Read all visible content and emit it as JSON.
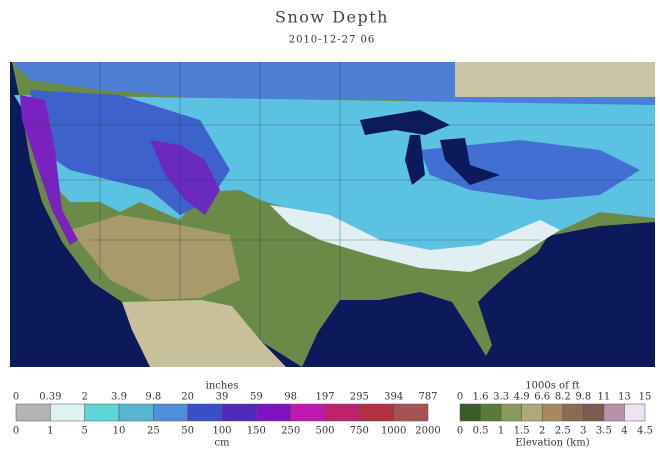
{
  "title": "Snow Depth",
  "subtitle": "2010-12-27 06",
  "snow_legend": {
    "unit_top": "inches",
    "labels_top": [
      0,
      0.39,
      2,
      3.9,
      9.8,
      20,
      39,
      59,
      98,
      197,
      295,
      394,
      787
    ],
    "labels_bottom": [
      0,
      1,
      5,
      10,
      25,
      50,
      100,
      150,
      250,
      500,
      750,
      1000,
      2000
    ],
    "unit_bottom": "cm",
    "colors": [
      "#b4b4b4",
      "#dff2f2",
      "#5ed6d6",
      "#56b6d2",
      "#4f8ed8",
      "#3a4ec8",
      "#5228b8",
      "#7e12c0",
      "#c018b0",
      "#c0226e",
      "#b23244",
      "#a45252"
    ]
  },
  "elevation_legend": {
    "unit_top": "1000s of ft",
    "labels_top": [
      0,
      1.6,
      3.3,
      4.9,
      6.6,
      8.2,
      9.8,
      11,
      13,
      15
    ],
    "labels_bottom": [
      0,
      0.5,
      1,
      1.5,
      2,
      2.5,
      3,
      3.5,
      4,
      4.5
    ],
    "unit_bottom": "Elevation (km)",
    "colors": [
      "#3a5a28",
      "#5a7a3a",
      "#8a9a5a",
      "#b0a878",
      "#a88860",
      "#8a6a50",
      "#7a5a52",
      "#b890a8",
      "#ece4f2"
    ]
  }
}
